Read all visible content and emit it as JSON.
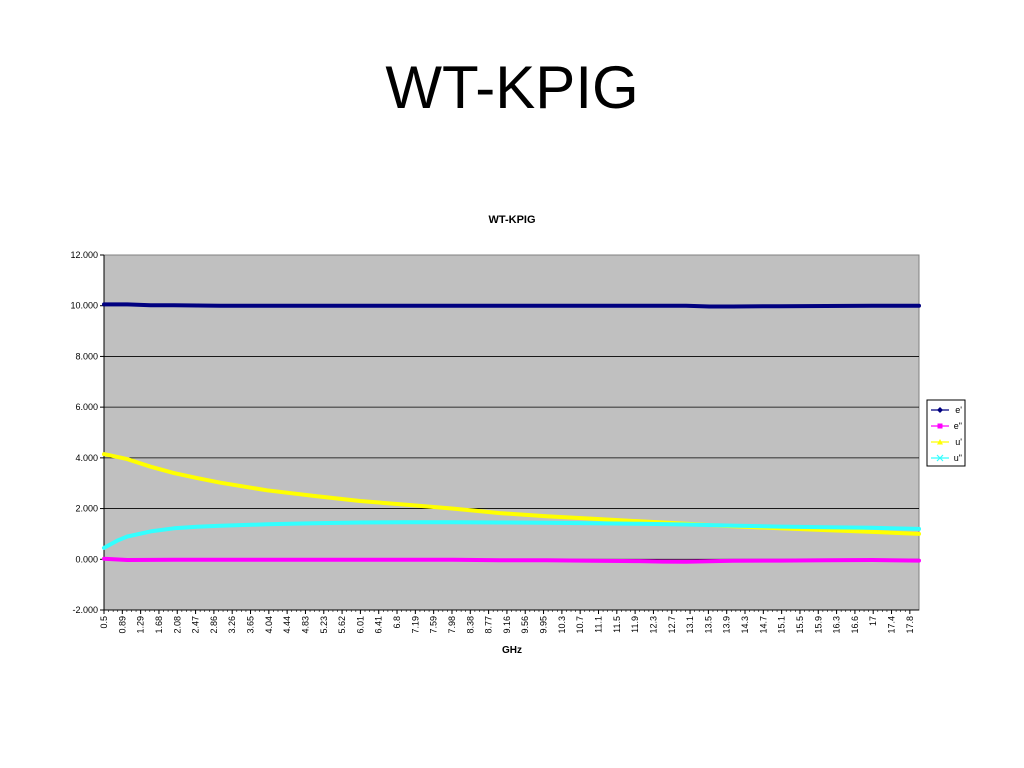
{
  "slide": {
    "title": "WT-KPIG"
  },
  "chart_data": {
    "type": "line",
    "title": "WT-KPIG",
    "xlabel": "GHz",
    "ylabel": "",
    "ylim": [
      -2,
      12
    ],
    "yticks": [
      "-2.000",
      "0.000",
      "2.000",
      "4.000",
      "6.000",
      "8.000",
      "10.000",
      "12.000"
    ],
    "xlim": [
      0.5,
      18.0
    ],
    "x_tick_labels": [
      "0.5",
      "0.89",
      "1.29",
      "1.68",
      "2.08",
      "2.47",
      "2.86",
      "3.26",
      "3.65",
      "4.04",
      "4.44",
      "4.83",
      "5.23",
      "5.62",
      "6.01",
      "6.41",
      "6.8",
      "7.19",
      "7.59",
      "7.98",
      "8.38",
      "8.77",
      "9.16",
      "9.56",
      "9.95",
      "10.3",
      "10.7",
      "11.1",
      "11.5",
      "11.9",
      "12.3",
      "12.7",
      "13.1",
      "13.5",
      "13.9",
      "14.3",
      "14.7",
      "15.1",
      "15.5",
      "15.9",
      "16.3",
      "16.6",
      "17",
      "17.4",
      "17.8"
    ],
    "grid": "horizontal",
    "plot_background": "#c0c0c0",
    "legend_position": "right",
    "series": [
      {
        "name": "e'",
        "color": "#000080",
        "marker": "diamond",
        "x": [
          0.5,
          1.0,
          1.5,
          2.0,
          3.0,
          4.0,
          5.0,
          6.0,
          7.0,
          8.0,
          9.0,
          10.0,
          11.0,
          12.0,
          13.0,
          13.5,
          14.0,
          15.0,
          16.0,
          17.0,
          18.0
        ],
        "y": [
          10.05,
          10.05,
          10.02,
          10.02,
          10.0,
          10.0,
          10.0,
          10.0,
          10.0,
          10.0,
          10.0,
          10.0,
          10.0,
          10.0,
          10.0,
          9.97,
          9.97,
          9.98,
          9.99,
          10.0,
          10.0
        ]
      },
      {
        "name": "e\"",
        "color": "#ff00ff",
        "marker": "square",
        "x": [
          0.5,
          1.0,
          2.0,
          3.0,
          4.0,
          5.0,
          6.0,
          7.0,
          8.0,
          9.0,
          10.0,
          11.0,
          12.0,
          12.5,
          13.0,
          13.5,
          14.0,
          15.0,
          16.0,
          17.0,
          18.0
        ],
        "y": [
          0.02,
          -0.03,
          -0.02,
          -0.02,
          -0.02,
          -0.02,
          -0.02,
          -0.02,
          -0.02,
          -0.04,
          -0.04,
          -0.06,
          -0.07,
          -0.09,
          -0.1,
          -0.08,
          -0.06,
          -0.05,
          -0.04,
          -0.03,
          -0.05
        ]
      },
      {
        "name": "u'",
        "color": "#ffff00",
        "marker": "triangle",
        "x": [
          0.5,
          1.0,
          1.5,
          2.0,
          2.5,
          3.0,
          4.0,
          5.0,
          6.0,
          7.0,
          8.0,
          9.0,
          10.0,
          11.0,
          12.0,
          13.0,
          14.0,
          15.0,
          16.0,
          17.0,
          18.0
        ],
        "y": [
          4.15,
          3.95,
          3.65,
          3.4,
          3.2,
          3.02,
          2.72,
          2.5,
          2.3,
          2.15,
          2.0,
          1.82,
          1.7,
          1.6,
          1.5,
          1.4,
          1.3,
          1.22,
          1.15,
          1.08,
          1.0
        ]
      },
      {
        "name": "u\"",
        "color": "#33ffff",
        "marker": "x",
        "x": [
          0.5,
          0.8,
          1.0,
          1.5,
          2.0,
          2.5,
          3.0,
          4.0,
          5.0,
          6.0,
          7.0,
          8.0,
          9.0,
          10.0,
          11.0,
          12.0,
          13.0,
          14.0,
          15.0,
          16.0,
          17.0,
          18.0
        ],
        "y": [
          0.45,
          0.75,
          0.9,
          1.1,
          1.22,
          1.28,
          1.32,
          1.38,
          1.42,
          1.45,
          1.46,
          1.46,
          1.45,
          1.44,
          1.42,
          1.4,
          1.37,
          1.33,
          1.29,
          1.26,
          1.24,
          1.2
        ]
      }
    ]
  }
}
